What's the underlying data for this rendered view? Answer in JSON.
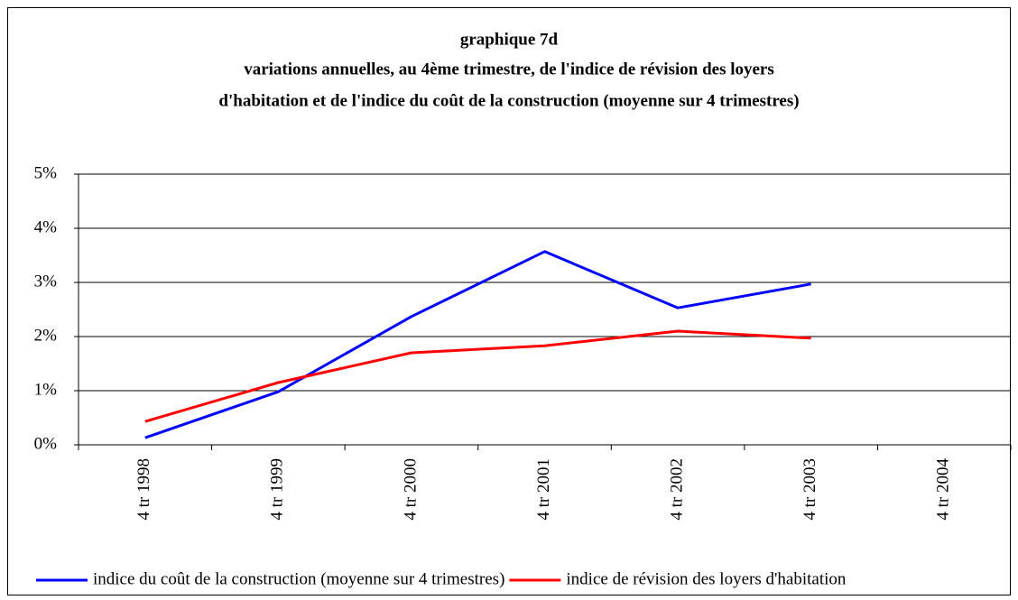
{
  "chart_data": {
    "type": "line",
    "title": [
      "graphique 7d",
      "variations annuelles, au 4ème trimestre, de l'indice de révision des loyers",
      "d'habitation  et de l'indice du coût de la construction (moyenne sur 4 trimestres)"
    ],
    "categories": [
      "4 tr 1998",
      "4 tr 1999",
      "4 tr 2000",
      "4 tr 2001",
      "4 tr 2002",
      "4 tr 2003",
      "4 tr 2004"
    ],
    "series": [
      {
        "name": "indice du coût de la construction (moyenne sur 4 trimestres)",
        "color": "#0000ff",
        "values": [
          0.13,
          0.98,
          2.37,
          3.57,
          2.53,
          2.97,
          null
        ]
      },
      {
        "name": "indice de révision des loyers d'habitation",
        "color": "#ff0000",
        "values": [
          0.43,
          1.15,
          1.7,
          1.83,
          2.1,
          1.97,
          null
        ]
      }
    ],
    "ylim": [
      0,
      5
    ],
    "yticks": [
      {
        "value": 0,
        "label": "0%"
      },
      {
        "value": 1,
        "label": "1%"
      },
      {
        "value": 2,
        "label": "2%"
      },
      {
        "value": 3,
        "label": "3%"
      },
      {
        "value": 4,
        "label": "4%"
      },
      {
        "value": 5,
        "label": "5%"
      }
    ],
    "grid": true,
    "legend": "bottom"
  }
}
